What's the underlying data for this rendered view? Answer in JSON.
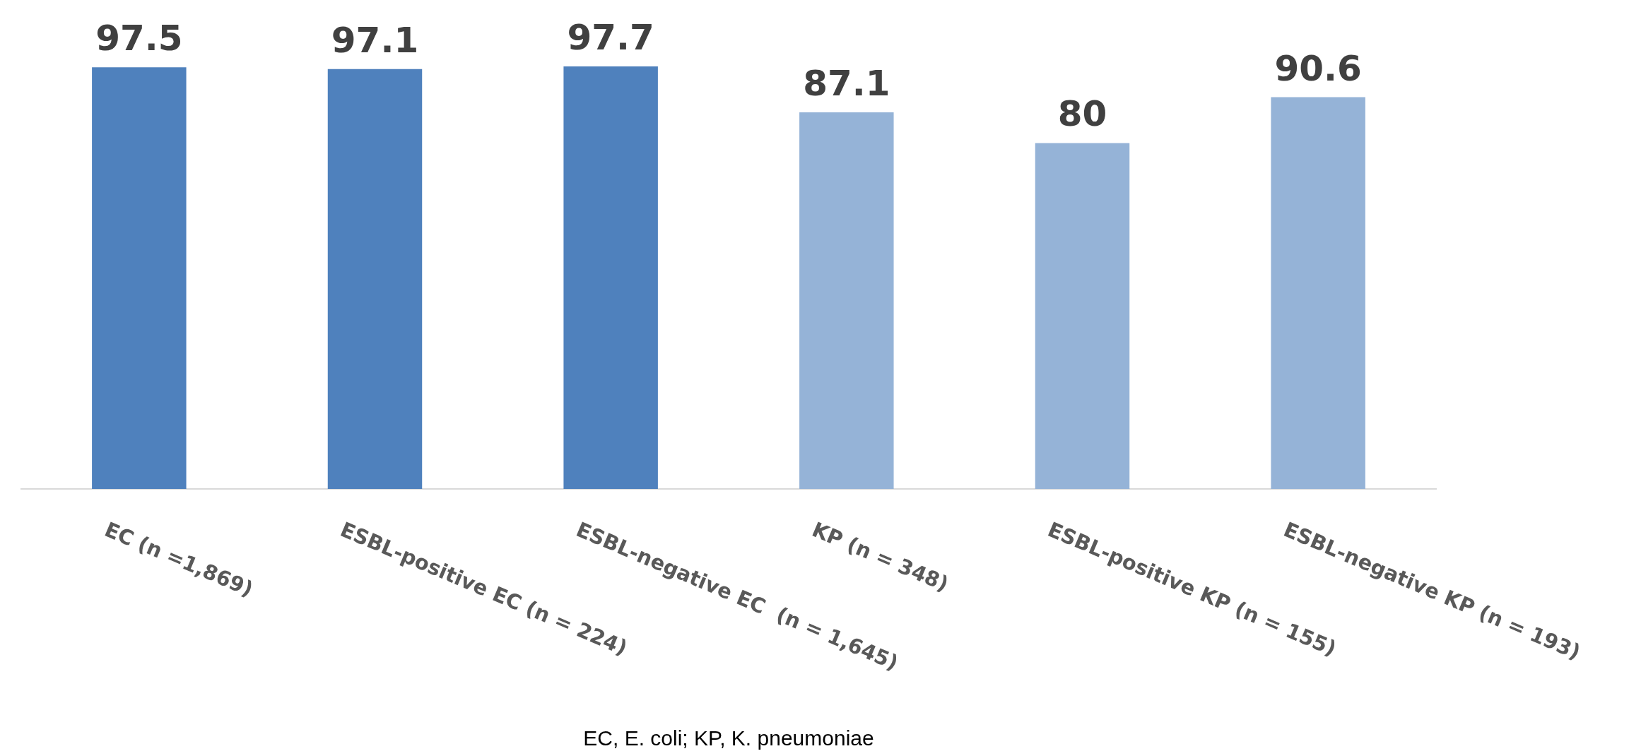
{
  "chart_data": {
    "type": "bar",
    "categories": [
      "EC (n =1,869)",
      "ESBL-positive EC (n = 224)",
      "ESBL-negative EC  (n = 1,645)",
      "KP (n = 348)",
      "ESBL-positive KP (n = 155)",
      "ESBL-negative KP (n = 193)"
    ],
    "values": [
      97.5,
      97.1,
      97.7,
      87.1,
      80,
      90.6
    ],
    "colors": [
      "#4f81bd",
      "#4f81bd",
      "#4f81bd",
      "#95b3d7",
      "#95b3d7",
      "#95b3d7"
    ],
    "data_labels": true,
    "grid": false,
    "legend": false,
    "tick_labels": "x",
    "annotations": [
      "EC, E. coli; KP, K. pneumoniae"
    ]
  }
}
